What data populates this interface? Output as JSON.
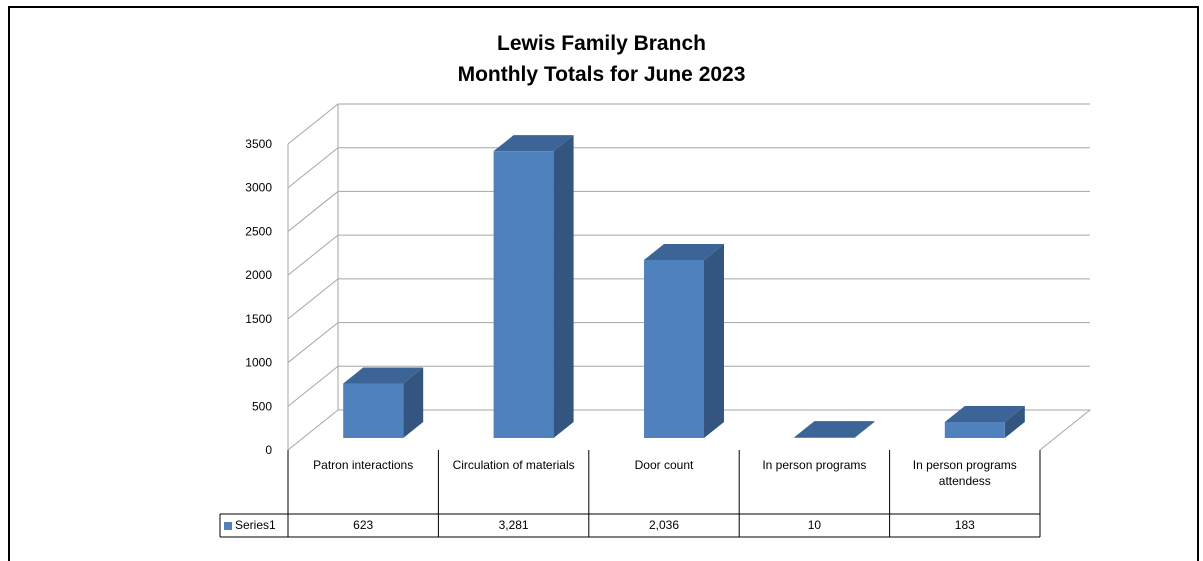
{
  "chart_data": {
    "type": "bar",
    "title": "Lewis Family Branch",
    "subtitle": "Monthly Totals for June 2023",
    "categories": [
      "Patron interactions",
      "Circulation of materials",
      "Door count",
      "In person programs",
      "In person programs attendess"
    ],
    "series": [
      {
        "name": "Series1",
        "values": [
          623,
          3281,
          2036,
          10,
          183
        ],
        "labels": [
          "623",
          "3,281",
          "2,036",
          "10",
          "183"
        ]
      }
    ],
    "ylim": [
      0,
      3500
    ],
    "yticks": [
      "0",
      "500",
      "1000",
      "1500",
      "2000",
      "2500",
      "3000",
      "3500"
    ],
    "grid": true,
    "legend": "data-table",
    "colors": {
      "bar_front": "#4f81bd",
      "bar_side": "#33557f",
      "bar_top": "#3d6496",
      "grid": "#a6a6a6"
    }
  }
}
